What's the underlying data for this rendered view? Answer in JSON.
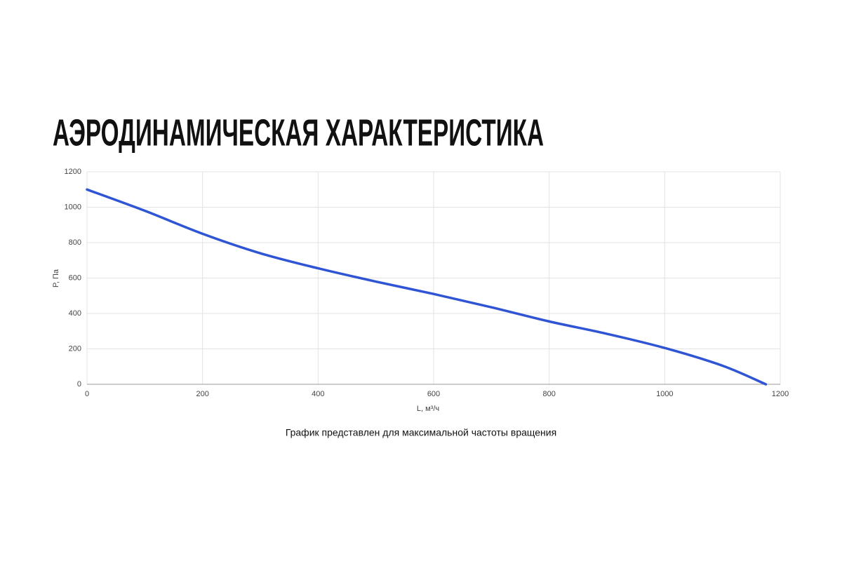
{
  "chart_data": {
    "type": "line",
    "title": "АЭРОДИНАМИЧЕСКАЯ ХАРАКТЕРИСТИКА",
    "xlabel": "L, м³/ч",
    "ylabel": "P, Па",
    "caption": "График представлен для максимальной частоты вращения",
    "x": [
      0,
      100,
      200,
      300,
      400,
      500,
      600,
      700,
      800,
      900,
      1000,
      1100,
      1175
    ],
    "values": [
      1100,
      980,
      850,
      740,
      655,
      580,
      510,
      435,
      355,
      285,
      205,
      105,
      0
    ],
    "color": "#2f55d4",
    "xlim": [
      0,
      1200
    ],
    "xticks": [
      0,
      200,
      400,
      600,
      800,
      1000,
      1200
    ],
    "ylim": [
      0,
      1200
    ],
    "yticks": [
      0,
      200,
      400,
      600,
      800,
      1000,
      1200
    ],
    "grid": true
  }
}
